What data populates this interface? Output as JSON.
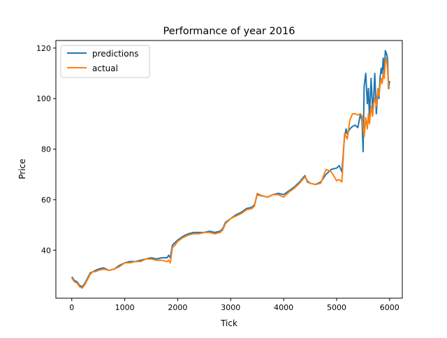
{
  "chart_data": {
    "type": "line",
    "title": "Performance of year 2016",
    "xlabel": "Tick",
    "ylabel": "Price",
    "xlim": [
      -300,
      6240
    ],
    "ylim": [
      21,
      123
    ],
    "xticks": [
      0,
      1000,
      2000,
      3000,
      4000,
      5000,
      6000
    ],
    "yticks": [
      40,
      60,
      80,
      100,
      120
    ],
    "legend_position": "top-left",
    "grid": false,
    "series": [
      {
        "name": "predictions",
        "color": "#1f77b4",
        "x": [
          0,
          50,
          100,
          150,
          200,
          250,
          300,
          350,
          400,
          450,
          500,
          600,
          700,
          800,
          900,
          1000,
          1100,
          1200,
          1300,
          1400,
          1500,
          1600,
          1700,
          1800,
          1830,
          1860,
          1900,
          1950,
          2000,
          2100,
          2200,
          2300,
          2400,
          2500,
          2600,
          2700,
          2800,
          2850,
          2900,
          3000,
          3100,
          3200,
          3300,
          3400,
          3450,
          3500,
          3600,
          3700,
          3800,
          3900,
          4000,
          4100,
          4200,
          4300,
          4400,
          4450,
          4500,
          4600,
          4700,
          4800,
          4900,
          5000,
          5050,
          5100,
          5150,
          5180,
          5200,
          5250,
          5300,
          5350,
          5400,
          5450,
          5480,
          5500,
          5520,
          5550,
          5580,
          5600,
          5620,
          5650,
          5680,
          5700,
          5720,
          5750,
          5780,
          5800,
          5820,
          5840,
          5860,
          5880,
          5900,
          5920,
          5940,
          5960,
          5980,
          6000
        ],
        "y": [
          29.5,
          28.0,
          27.5,
          26.0,
          25.5,
          27.0,
          29.0,
          31.0,
          31.5,
          32.0,
          32.5,
          33.0,
          32.0,
          32.5,
          34.0,
          35.0,
          35.5,
          35.5,
          36.0,
          36.5,
          37.0,
          36.5,
          37.0,
          37.0,
          38.0,
          37.0,
          42.0,
          43.0,
          44.0,
          45.5,
          46.5,
          47.0,
          47.0,
          47.0,
          47.5,
          47.0,
          47.5,
          48.5,
          51.0,
          52.5,
          54.0,
          55.0,
          56.5,
          57.0,
          58.0,
          62.0,
          61.5,
          61.0,
          62.0,
          62.5,
          62.0,
          63.5,
          65.0,
          67.0,
          69.5,
          67.0,
          66.5,
          66.0,
          67.0,
          70.0,
          72.0,
          72.5,
          73.5,
          71.0,
          85.0,
          88.0,
          86.0,
          88.0,
          89.0,
          89.5,
          88.5,
          94.0,
          91.0,
          79.0,
          105.0,
          110.0,
          98.0,
          104.0,
          92.0,
          108.0,
          96.0,
          100.0,
          110.0,
          94.0,
          104.0,
          100.0,
          108.0,
          112.0,
          110.0,
          116.0,
          110.0,
          119.0,
          118.0,
          116.0,
          104.0,
          107.0
        ]
      },
      {
        "name": "actual",
        "color": "#ff7f0e",
        "x": [
          0,
          50,
          100,
          150,
          200,
          250,
          300,
          350,
          400,
          450,
          500,
          600,
          700,
          800,
          900,
          1000,
          1100,
          1200,
          1300,
          1400,
          1500,
          1600,
          1700,
          1800,
          1830,
          1860,
          1900,
          1950,
          2000,
          2100,
          2200,
          2300,
          2400,
          2500,
          2600,
          2700,
          2800,
          2850,
          2900,
          3000,
          3100,
          3200,
          3300,
          3400,
          3450,
          3500,
          3600,
          3700,
          3800,
          3900,
          4000,
          4100,
          4200,
          4300,
          4400,
          4450,
          4500,
          4600,
          4700,
          4800,
          4900,
          5000,
          5050,
          5100,
          5150,
          5180,
          5200,
          5250,
          5300,
          5350,
          5400,
          5450,
          5480,
          5500,
          5520,
          5550,
          5580,
          5600,
          5620,
          5650,
          5680,
          5700,
          5720,
          5750,
          5780,
          5800,
          5820,
          5840,
          5860,
          5880,
          5900,
          5920,
          5940,
          5960,
          5980,
          6000
        ],
        "y": [
          29.0,
          27.5,
          27.0,
          25.5,
          25.0,
          26.5,
          28.5,
          30.5,
          31.5,
          31.5,
          32.0,
          32.5,
          32.0,
          32.5,
          33.5,
          35.0,
          35.0,
          35.5,
          35.5,
          36.5,
          36.5,
          36.0,
          36.0,
          35.5,
          36.0,
          35.0,
          41.0,
          42.0,
          43.5,
          45.0,
          46.0,
          46.5,
          46.5,
          47.0,
          47.0,
          46.5,
          47.0,
          48.0,
          50.5,
          52.5,
          53.5,
          54.5,
          56.0,
          56.5,
          57.5,
          62.5,
          61.5,
          61.0,
          62.0,
          62.0,
          61.0,
          63.0,
          64.5,
          66.5,
          69.0,
          67.5,
          66.5,
          66.0,
          66.5,
          72.0,
          71.0,
          67.5,
          68.0,
          67.0,
          86.0,
          85.0,
          84.0,
          91.5,
          94.0,
          94.0,
          93.5,
          94.0,
          93.0,
          88.0,
          85.0,
          92.5,
          88.0,
          94.0,
          90.0,
          97.0,
          93.0,
          98.0,
          100.0,
          97.0,
          104.0,
          101.0,
          105.0,
          108.0,
          106.0,
          110.0,
          108.0,
          115.0,
          116.0,
          112.0,
          105.0,
          104.0
        ]
      }
    ]
  }
}
